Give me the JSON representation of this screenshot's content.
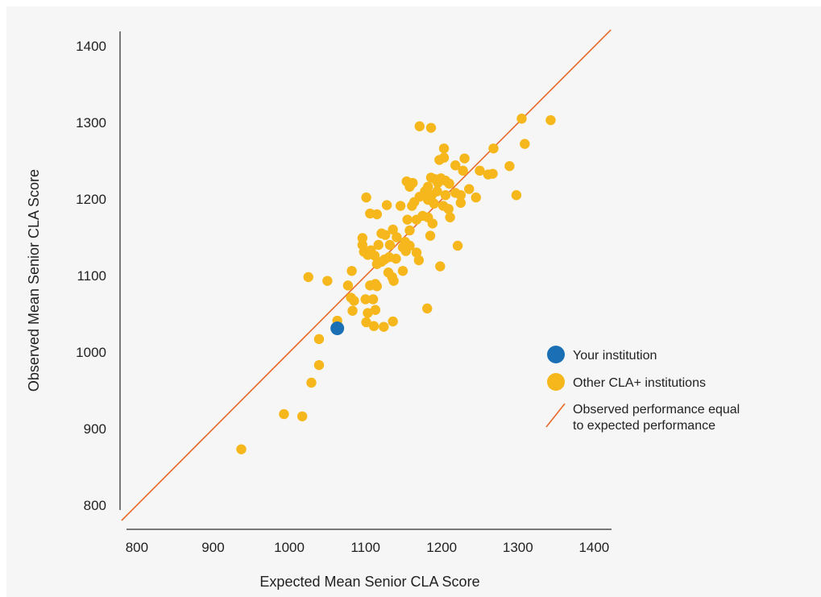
{
  "chart_data": {
    "type": "scatter",
    "xlabel": "Expected Mean Senior CLA Score",
    "ylabel": "Observed Mean Senior CLA Score",
    "xlim": [
      780,
      1425
    ],
    "ylim": [
      780,
      1420
    ],
    "xticks": [
      800,
      900,
      1000,
      1100,
      1200,
      1300,
      1400
    ],
    "yticks": [
      800,
      900,
      1000,
      1100,
      1200,
      1300,
      1400
    ],
    "grid": false,
    "legend_position": "right",
    "colors": {
      "your_institution": "#1a6fb5",
      "other_institutions": "#f5b71c",
      "reference_line": "#e8692a",
      "axis": "#777777"
    },
    "reference_line": {
      "name": "Observed performance equal to expected performance",
      "lines": [
        "Observed performance equal",
        "to expected performance"
      ],
      "from": [
        780,
        780
      ],
      "to": [
        1422,
        1421
      ]
    },
    "series": [
      {
        "name": "Your institution",
        "points": [
          [
            1063,
            1031
          ]
        ]
      },
      {
        "name": "Other CLA+ institutions",
        "points": [
          [
            937,
            873
          ],
          [
            993,
            919
          ],
          [
            1017,
            916
          ],
          [
            1029,
            960
          ],
          [
            1039,
            983
          ],
          [
            1039,
            1017
          ],
          [
            1025,
            1098
          ],
          [
            1050,
            1093
          ],
          [
            1063,
            1041
          ],
          [
            1077,
            1087
          ],
          [
            1082,
            1106
          ],
          [
            1081,
            1071
          ],
          [
            1085,
            1067
          ],
          [
            1083,
            1054
          ],
          [
            1100,
            1069
          ],
          [
            1103,
            1051
          ],
          [
            1110,
            1069
          ],
          [
            1113,
            1055
          ],
          [
            1101,
            1039
          ],
          [
            1111,
            1034
          ],
          [
            1124,
            1033
          ],
          [
            1136,
            1040
          ],
          [
            1181,
            1057
          ],
          [
            1096,
            1149
          ],
          [
            1096,
            1140
          ],
          [
            1098,
            1131
          ],
          [
            1103,
            1127
          ],
          [
            1107,
            1133
          ],
          [
            1112,
            1126
          ],
          [
            1117,
            1140
          ],
          [
            1121,
            1118
          ],
          [
            1125,
            1121
          ],
          [
            1115,
            1115
          ],
          [
            1106,
            1087
          ],
          [
            1113,
            1089
          ],
          [
            1115,
            1086
          ],
          [
            1130,
            1104
          ],
          [
            1135,
            1098
          ],
          [
            1137,
            1093
          ],
          [
            1149,
            1106
          ],
          [
            1132,
            1140
          ],
          [
            1131,
            1124
          ],
          [
            1140,
            1122
          ],
          [
            1149,
            1137
          ],
          [
            1153,
            1132
          ],
          [
            1101,
            1202
          ],
          [
            1106,
            1181
          ],
          [
            1115,
            1180
          ],
          [
            1128,
            1192
          ],
          [
            1121,
            1155
          ],
          [
            1126,
            1153
          ],
          [
            1136,
            1160
          ],
          [
            1141,
            1150
          ],
          [
            1146,
            1191
          ],
          [
            1155,
            1173
          ],
          [
            1152,
            1144
          ],
          [
            1158,
            1139
          ],
          [
            1158,
            1159
          ],
          [
            1161,
            1191
          ],
          [
            1167,
            1130
          ],
          [
            1170,
            1120
          ],
          [
            1154,
            1223
          ],
          [
            1158,
            1216
          ],
          [
            1162,
            1221
          ],
          [
            1164,
            1196
          ],
          [
            1167,
            1173
          ],
          [
            1171,
            1203
          ],
          [
            1175,
            1178
          ],
          [
            1178,
            1210
          ],
          [
            1182,
            1199
          ],
          [
            1182,
            1216
          ],
          [
            1182,
            1176
          ],
          [
            1185,
            1152
          ],
          [
            1187,
            1205
          ],
          [
            1186,
            1228
          ],
          [
            1191,
            1226
          ],
          [
            1190,
            1194
          ],
          [
            1194,
            1210
          ],
          [
            1195,
            1221
          ],
          [
            1197,
            1251
          ],
          [
            1199,
            1227
          ],
          [
            1202,
            1191
          ],
          [
            1205,
            1224
          ],
          [
            1205,
            1205
          ],
          [
            1209,
            1187
          ],
          [
            1211,
            1176
          ],
          [
            1218,
            1244
          ],
          [
            1218,
            1208
          ],
          [
            1221,
            1139
          ],
          [
            1225,
            1195
          ],
          [
            1225,
            1205
          ],
          [
            1228,
            1237
          ],
          [
            1230,
            1253
          ],
          [
            1236,
            1213
          ],
          [
            1245,
            1202
          ],
          [
            1250,
            1237
          ],
          [
            1261,
            1232
          ],
          [
            1267,
            1233
          ],
          [
            1268,
            1266
          ],
          [
            1289,
            1243
          ],
          [
            1298,
            1205
          ],
          [
            1305,
            1305
          ],
          [
            1309,
            1272
          ],
          [
            1343,
            1303
          ],
          [
            1171,
            1295
          ],
          [
            1186,
            1293
          ],
          [
            1203,
            1266
          ],
          [
            1188,
            1168
          ],
          [
            1198,
            1112
          ],
          [
            1203,
            1254
          ],
          [
            1210,
            1220
          ]
        ]
      }
    ]
  }
}
